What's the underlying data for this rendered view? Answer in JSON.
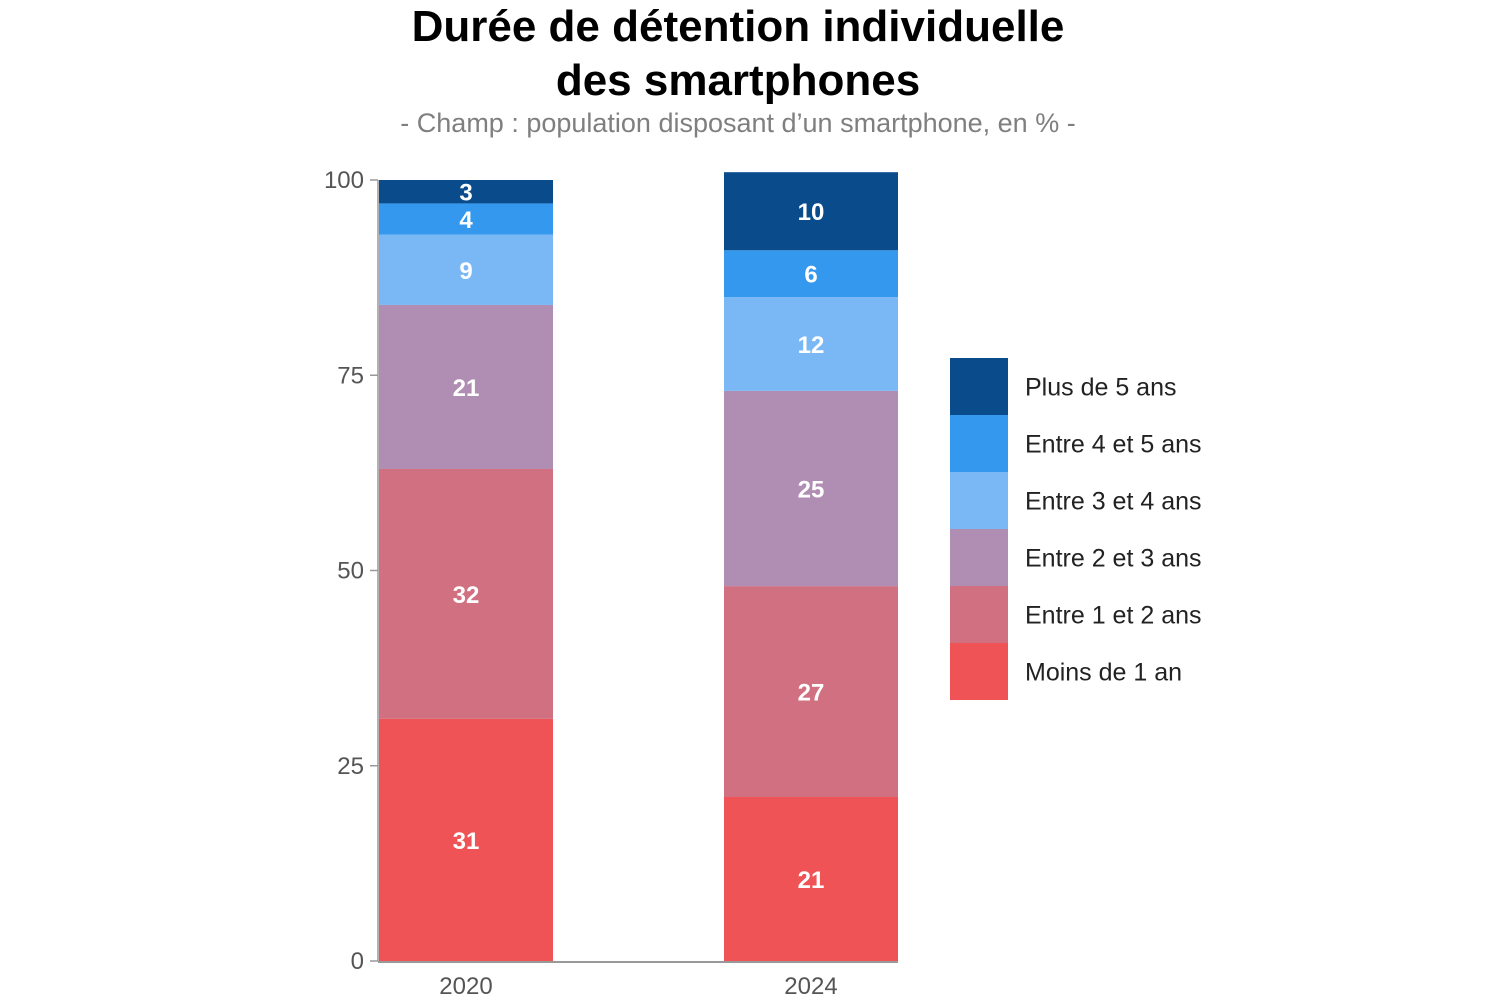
{
  "chart_data": {
    "type": "bar",
    "stacked": true,
    "title_lines": [
      "Durée de détention individuelle",
      "des smartphones"
    ],
    "subtitle": "- Champ : population disposant d’un smartphone, en % -",
    "categories": [
      "2020",
      "2024"
    ],
    "series": [
      {
        "name": "Moins de 1 an",
        "color": "#ef5356",
        "values": [
          31,
          21
        ]
      },
      {
        "name": "Entre 1 et 2 ans",
        "color": "#d07080",
        "values": [
          32,
          27
        ]
      },
      {
        "name": "Entre 2 et 3 ans",
        "color": "#b08db3",
        "values": [
          21,
          25
        ]
      },
      {
        "name": "Entre 3 et 4 ans",
        "color": "#7ab8f5",
        "values": [
          9,
          12
        ]
      },
      {
        "name": "Entre 4 et 5 ans",
        "color": "#3598ef",
        "values": [
          4,
          6
        ]
      },
      {
        "name": "Plus de 5 ans",
        "color": "#0a4b8c",
        "values": [
          3,
          10
        ]
      }
    ],
    "ylim": [
      0,
      100
    ],
    "yticks": [
      0,
      25,
      50,
      75,
      100
    ],
    "xlabel": "",
    "ylabel": "",
    "grid": false,
    "legend_position": "right",
    "legend_order": [
      "Plus de 5 ans",
      "Entre 4 et 5 ans",
      "Entre 3 et 4 ans",
      "Entre 2 et 3 ans",
      "Entre 1 et 2 ans",
      "Moins de 1 an"
    ]
  }
}
